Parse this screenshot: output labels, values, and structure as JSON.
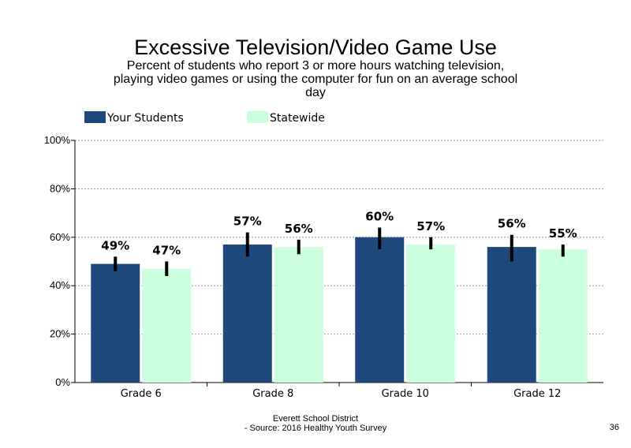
{
  "title": "Excessive Television/Video Game Use",
  "subtitle_lines": [
    "Percent of students who report 3 or more hours watching television,",
    "playing video games or using the computer for fun on an average school",
    "day"
  ],
  "footer": {
    "line1": "Everett School District",
    "line2": "- Source: 2016 Healthy  Youth Survey",
    "page_number": "36"
  },
  "colors": {
    "your_students": "#1f497d",
    "statewide": "#ccffdd",
    "error_bar": "#000000",
    "grid": "#999999"
  },
  "chart_data": {
    "type": "bar",
    "categories": [
      "Grade 6",
      "Grade 8",
      "Grade 10",
      "Grade 12"
    ],
    "series": [
      {
        "name": "Your Students",
        "values": [
          49,
          57,
          60,
          56
        ],
        "labels": [
          "49%",
          "57%",
          "60%",
          "56%"
        ],
        "error_low": [
          46,
          52,
          55,
          50
        ],
        "error_high": [
          52,
          62,
          64,
          61
        ]
      },
      {
        "name": "Statewide",
        "values": [
          47,
          56,
          57,
          55
        ],
        "labels": [
          "47%",
          "56%",
          "57%",
          "55%"
        ],
        "error_low": [
          44,
          53,
          55,
          52
        ],
        "error_high": [
          50,
          59,
          60,
          57
        ]
      }
    ],
    "yticks": [
      "0%",
      "20%",
      "40%",
      "60%",
      "80%",
      "100%"
    ],
    "ytick_values": [
      0,
      20,
      40,
      60,
      80,
      100
    ],
    "ylim": [
      0,
      100
    ],
    "grid": true,
    "legend_position": "top"
  }
}
